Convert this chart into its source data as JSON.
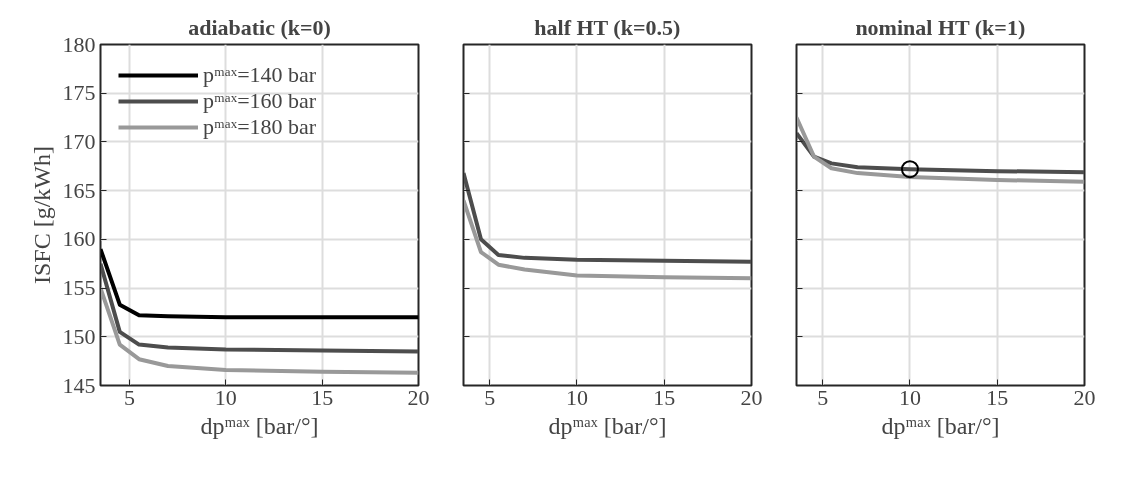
{
  "chart_data": [
    {
      "type": "line",
      "title": "adiabatic (k=0)",
      "xlabel": "dpᵐᵃˣ [bar/°]",
      "ylabel": "ISFC [g/kWh]",
      "xlim": [
        3.5,
        20
      ],
      "xticks": [
        5,
        10,
        15,
        20
      ],
      "ylim": [
        145,
        180
      ],
      "yticks": [
        145,
        150,
        155,
        160,
        165,
        170,
        175,
        180
      ],
      "grid": true,
      "legend": "top left",
      "marker": "none",
      "x": [
        3.5,
        4.5,
        5.5,
        7,
        10,
        15,
        20
      ],
      "series": [
        {
          "name": "pᵐᵃˣ=140 bar",
          "color": "#000000",
          "values": [
            159,
            153.3,
            152.2,
            152.1,
            152.0,
            152.0,
            152.0
          ]
        },
        {
          "name": "pᵐᵃˣ=160 bar",
          "color": "#4d4d4d",
          "values": [
            157.5,
            150.5,
            149.2,
            148.9,
            148.7,
            148.6,
            148.5
          ]
        },
        {
          "name": "pᵐᵃˣ=180 bar",
          "color": "#999999",
          "values": [
            155,
            149.2,
            147.7,
            147.0,
            146.6,
            146.4,
            146.3
          ]
        }
      ]
    },
    {
      "type": "line",
      "title": "half HT (k=0.5)",
      "xlabel": "dpᵐᵃˣ [bar/°]",
      "xlim": [
        3.5,
        20
      ],
      "xticks": [
        5,
        10,
        15,
        20
      ],
      "ylim": [
        145,
        180
      ],
      "yticks": [
        145,
        150,
        155,
        160,
        165,
        170,
        175,
        180
      ],
      "grid": true,
      "tick_labels": "x",
      "marker": "none",
      "x": [
        3.5,
        4.5,
        5.5,
        7,
        10,
        15,
        20
      ],
      "series": [
        {
          "color": "#4d4d4d",
          "values": [
            166.8,
            160,
            158.4,
            158.1,
            157.9,
            157.8,
            157.7
          ]
        },
        {
          "color": "#999999",
          "values": [
            164,
            158.7,
            157.4,
            156.9,
            156.3,
            156.1,
            156.0
          ]
        }
      ]
    },
    {
      "type": "line",
      "title": "nominal HT (k=1)",
      "xlabel": "dpᵐᵃˣ [bar/°]",
      "xlim": [
        3.5,
        20
      ],
      "xticks": [
        5,
        10,
        15,
        20
      ],
      "ylim": [
        145,
        180
      ],
      "yticks": [
        145,
        150,
        155,
        160,
        165,
        170,
        175,
        180
      ],
      "grid": true,
      "tick_labels": "x",
      "marker": "none",
      "x": [
        3.5,
        4.5,
        5.5,
        7,
        10,
        15,
        20
      ],
      "series": [
        {
          "color": "#4d4d4d",
          "values": [
            170.9,
            168.5,
            167.8,
            167.4,
            167.2,
            167.0,
            166.9
          ]
        },
        {
          "color": "#999999",
          "values": [
            172.5,
            168.5,
            167.3,
            166.8,
            166.4,
            166.1,
            165.9
          ]
        },
        {
          "type": "scatter",
          "marker": "circle",
          "color": "#000000",
          "x": [
            10
          ],
          "values": [
            167.2
          ]
        }
      ]
    }
  ]
}
